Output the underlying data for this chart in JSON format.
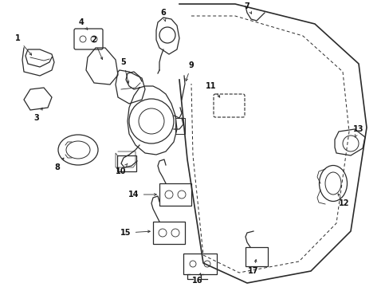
{
  "background_color": "#ffffff",
  "line_color": "#2a2a2a",
  "text_color": "#111111",
  "fig_width": 4.89,
  "fig_height": 3.6,
  "dpi": 100
}
